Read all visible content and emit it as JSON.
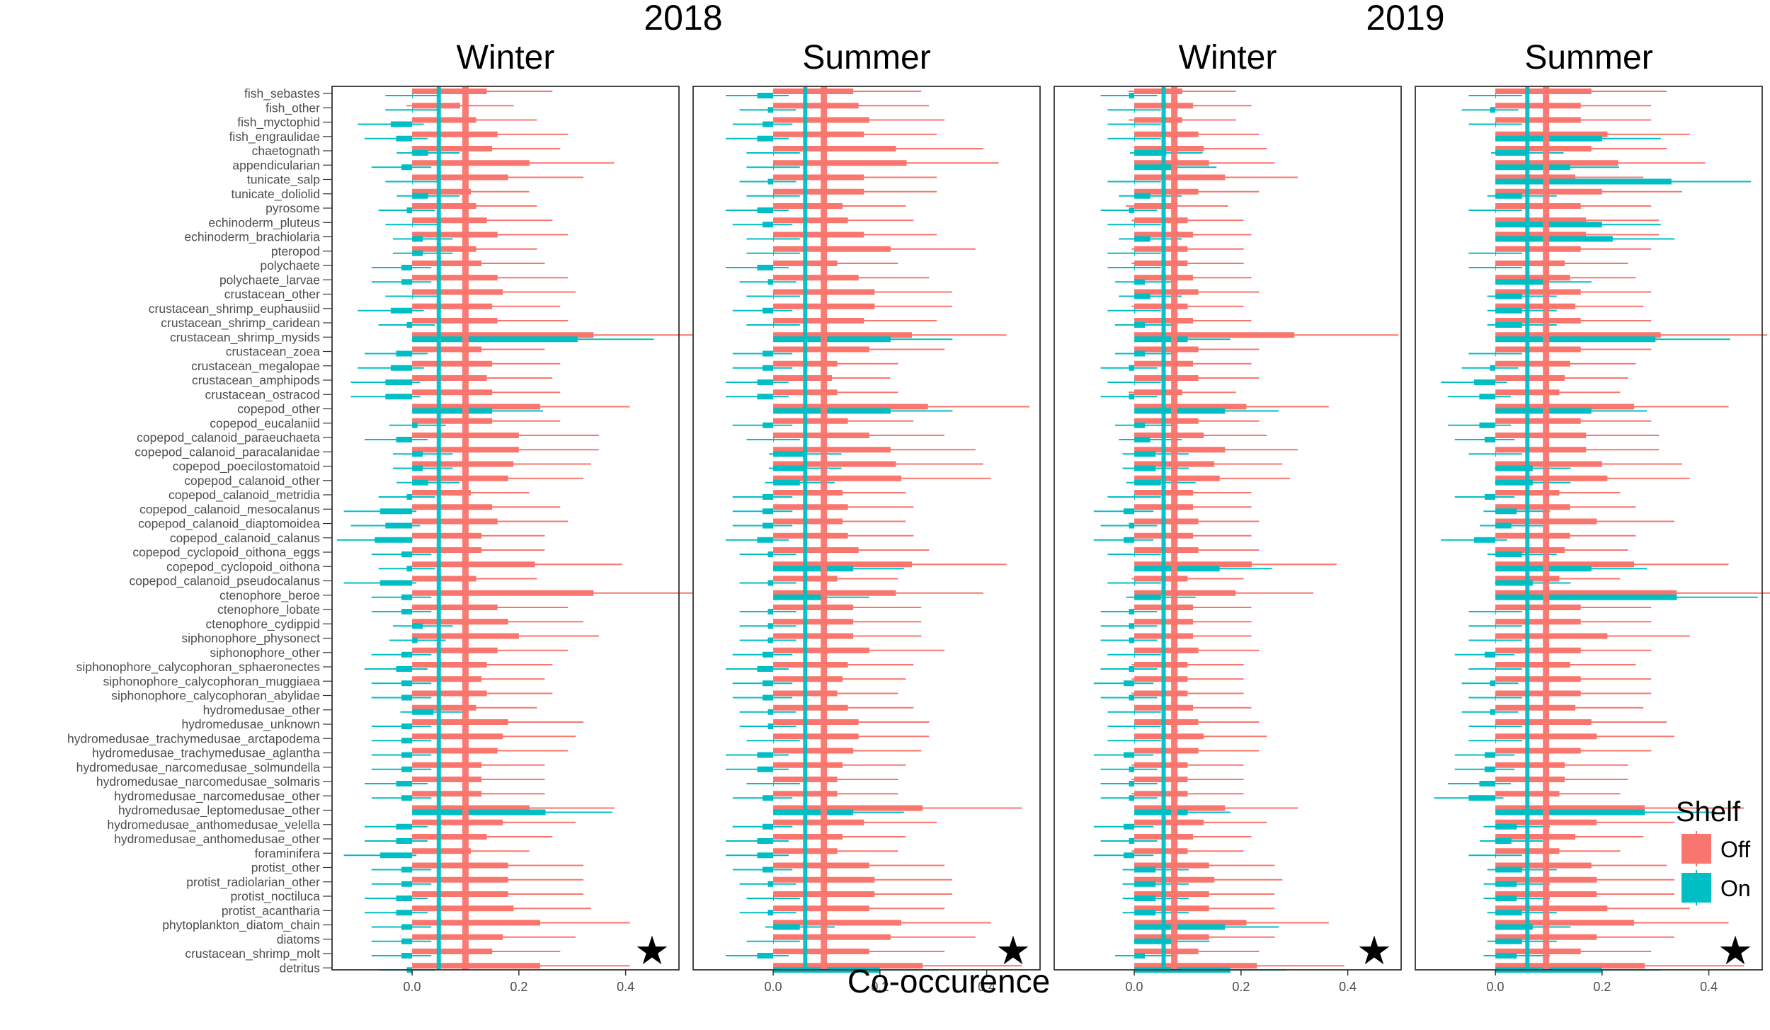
{
  "chart_data": {
    "type": "bar",
    "xlabel": "Co-occurence",
    "xlim": [
      -0.15,
      0.5
    ],
    "xticks": [
      0.0,
      0.2,
      0.4
    ],
    "xtick_labels": [
      "0.0",
      "0.2",
      "0.4"
    ],
    "years": [
      "2018",
      "2019"
    ],
    "legend": {
      "title": "Shelf",
      "position": "bottom-right",
      "entries": [
        {
          "name": "Off",
          "color": "#F8766D"
        },
        {
          "name": "On",
          "color": "#00BFC4"
        }
      ]
    },
    "categories": [
      "fish_sebastes",
      "fish_other",
      "fish_myctophid",
      "fish_engraulidae",
      "chaetognath",
      "appendicularian",
      "tunicate_salp",
      "tunicate_doliolid",
      "pyrosome",
      "echinoderm_pluteus",
      "echinoderm_brachiolaria",
      "pteropod",
      "polychaete",
      "polychaete_larvae",
      "crustacean_other",
      "crustacean_shrimp_euphausiid",
      "crustacean_shrimp_caridean",
      "crustacean_shrimp_mysids",
      "crustacean_zoea",
      "crustacean_megalopae",
      "crustacean_amphipods",
      "crustacean_ostracod",
      "copepod_other",
      "copepod_eucalaniid",
      "copepod_calanoid_paraeuchaeta",
      "copepod_calanoid_paracalanidae",
      "copepod_poecilostomatoid",
      "copepod_calanoid_other",
      "copepod_calanoid_metridia",
      "copepod_calanoid_mesocalanus",
      "copepod_calanoid_diaptomoidea",
      "copepod_calanoid_calanus",
      "copepod_cyclopoid_oithona_eggs",
      "copepod_cyclopoid_oithona",
      "copepod_calanoid_pseudocalanus",
      "ctenophore_beroe",
      "ctenophore_lobate",
      "ctenophore_cydippid",
      "siphonophore_physonect",
      "siphonophore_other",
      "siphonophore_calycophoran_sphaeronectes",
      "siphonophore_calycophoran_muggiaea",
      "siphonophore_calycophoran_abylidae",
      "hydromedusae_other",
      "hydromedusae_unknown",
      "hydromedusae_trachymedusae_arctapodema",
      "hydromedusae_trachymedusae_aglantha",
      "hydromedusae_narcomedusae_solmundella",
      "hydromedusae_narcomedusae_solmaris",
      "hydromedusae_narcomedusae_other",
      "hydromedusae_leptomedusae_other",
      "hydromedusae_anthomedusae_velella",
      "hydromedusae_anthomedusae_other",
      "foraminifera",
      "protist_other",
      "protist_radiolarian_other",
      "protist_noctiluca",
      "protist_acantharia",
      "phytoplankton_diatom_chain",
      "diatoms",
      "crustacean_shrimp_molt",
      "detritus"
    ],
    "panels": [
      {
        "year": "2018",
        "season": "Winter",
        "mean_off": 0.1,
        "mean_on": 0.05,
        "star": "★",
        "off": [
          0.14,
          0.09,
          0.12,
          0.16,
          0.15,
          0.22,
          0.18,
          0.11,
          0.12,
          0.14,
          0.16,
          0.12,
          0.13,
          0.16,
          0.17,
          0.15,
          0.16,
          0.34,
          0.13,
          0.15,
          0.14,
          0.15,
          0.24,
          0.15,
          0.2,
          0.2,
          0.19,
          0.18,
          0.11,
          0.15,
          0.16,
          0.13,
          0.13,
          0.23,
          0.12,
          0.34,
          0.16,
          0.18,
          0.2,
          0.16,
          0.14,
          0.13,
          0.14,
          0.12,
          0.18,
          0.17,
          0.16,
          0.13,
          0.13,
          0.13,
          0.22,
          0.17,
          0.14,
          0.11,
          0.18,
          0.18,
          0.18,
          0.19,
          0.24,
          0.17,
          0.15,
          0.24
        ],
        "on": [
          0.0,
          0.0,
          -0.04,
          -0.03,
          0.03,
          -0.02,
          0.0,
          0.03,
          -0.01,
          0.0,
          0.02,
          0.02,
          -0.02,
          -0.02,
          0.0,
          -0.04,
          -0.01,
          0.31,
          -0.03,
          -0.04,
          -0.05,
          -0.05,
          0.15,
          0.01,
          -0.03,
          0.02,
          0.02,
          0.03,
          -0.01,
          -0.06,
          -0.05,
          -0.07,
          -0.02,
          -0.01,
          -0.06,
          -0.02,
          -0.02,
          0.02,
          0.01,
          -0.02,
          -0.03,
          -0.02,
          -0.02,
          0.04,
          -0.02,
          -0.02,
          -0.02,
          -0.02,
          -0.03,
          -0.02,
          0.25,
          -0.03,
          -0.03,
          -0.06,
          -0.02,
          -0.02,
          -0.03,
          -0.03,
          -0.02,
          -0.02,
          -0.02,
          -0.01
        ]
      },
      {
        "year": "2018",
        "season": "Summer",
        "mean_off": 0.095,
        "mean_on": 0.06,
        "star": "★",
        "off": [
          0.15,
          0.16,
          0.18,
          0.17,
          0.23,
          0.25,
          0.17,
          0.17,
          0.13,
          0.14,
          0.17,
          0.22,
          0.12,
          0.16,
          0.19,
          0.19,
          0.17,
          0.26,
          0.18,
          0.12,
          0.11,
          0.12,
          0.29,
          0.14,
          0.18,
          0.22,
          0.23,
          0.24,
          0.13,
          0.14,
          0.13,
          0.14,
          0.16,
          0.26,
          0.12,
          0.23,
          0.15,
          0.15,
          0.15,
          0.18,
          0.14,
          0.13,
          0.12,
          0.14,
          0.16,
          0.16,
          0.15,
          0.13,
          0.12,
          0.12,
          0.28,
          0.17,
          0.13,
          0.12,
          0.18,
          0.19,
          0.19,
          0.18,
          0.24,
          0.22,
          0.18,
          0.28
        ],
        "on": [
          -0.03,
          -0.01,
          -0.02,
          -0.03,
          0.0,
          0.0,
          -0.01,
          0.0,
          -0.03,
          -0.02,
          0.0,
          0.0,
          -0.03,
          -0.01,
          0.0,
          -0.02,
          0.0,
          0.22,
          -0.02,
          -0.02,
          -0.03,
          -0.03,
          0.22,
          -0.02,
          0.0,
          0.06,
          0.06,
          0.05,
          -0.02,
          -0.02,
          -0.02,
          -0.03,
          -0.01,
          0.15,
          -0.01,
          0.1,
          -0.01,
          -0.01,
          -0.01,
          -0.02,
          -0.03,
          -0.02,
          -0.02,
          -0.01,
          -0.01,
          0.0,
          -0.03,
          -0.03,
          0.0,
          -0.02,
          0.15,
          -0.02,
          -0.03,
          -0.03,
          -0.02,
          -0.01,
          0.0,
          -0.01,
          0.05,
          0.0,
          -0.03,
          0.2
        ]
      },
      {
        "year": "2019",
        "season": "Winter",
        "mean_off": 0.075,
        "mean_on": 0.055,
        "star": "★",
        "off": [
          0.09,
          0.11,
          0.09,
          0.12,
          0.13,
          0.14,
          0.17,
          0.12,
          0.08,
          0.1,
          0.11,
          0.1,
          0.1,
          0.11,
          0.12,
          0.1,
          0.11,
          0.3,
          0.12,
          0.11,
          0.12,
          0.09,
          0.21,
          0.12,
          0.13,
          0.17,
          0.15,
          0.16,
          0.11,
          0.11,
          0.12,
          0.11,
          0.12,
          0.22,
          0.1,
          0.19,
          0.11,
          0.11,
          0.11,
          0.12,
          0.1,
          0.1,
          0.1,
          0.11,
          0.12,
          0.13,
          0.12,
          0.1,
          0.1,
          0.1,
          0.17,
          0.13,
          0.11,
          0.1,
          0.14,
          0.15,
          0.14,
          0.14,
          0.21,
          0.14,
          0.12,
          0.23
        ],
        "on": [
          -0.01,
          0.0,
          0.0,
          0.0,
          0.06,
          0.08,
          0.0,
          0.03,
          -0.01,
          0.0,
          0.03,
          0.0,
          0.0,
          0.02,
          0.03,
          0.0,
          0.02,
          0.1,
          0.02,
          -0.01,
          0.0,
          -0.01,
          0.17,
          0.02,
          0.03,
          0.04,
          0.04,
          0.05,
          0.0,
          -0.02,
          -0.01,
          -0.02,
          0.0,
          0.16,
          0.0,
          0.05,
          -0.01,
          -0.01,
          -0.01,
          0.0,
          -0.01,
          -0.02,
          -0.01,
          0.0,
          0.0,
          0.0,
          -0.02,
          -0.01,
          -0.01,
          -0.01,
          0.1,
          -0.02,
          -0.01,
          -0.02,
          0.04,
          0.04,
          0.04,
          0.04,
          0.17,
          0.07,
          0.02,
          0.18
        ]
      },
      {
        "year": "2019",
        "season": "Summer",
        "mean_off": 0.095,
        "mean_on": 0.06,
        "star": "★",
        "off": [
          0.18,
          0.16,
          0.16,
          0.21,
          0.18,
          0.23,
          0.15,
          0.2,
          0.16,
          0.17,
          0.17,
          0.16,
          0.13,
          0.14,
          0.16,
          0.15,
          0.16,
          0.31,
          0.16,
          0.14,
          0.13,
          0.12,
          0.26,
          0.16,
          0.17,
          0.17,
          0.2,
          0.21,
          0.12,
          0.14,
          0.19,
          0.14,
          0.13,
          0.26,
          0.12,
          0.34,
          0.16,
          0.16,
          0.21,
          0.16,
          0.14,
          0.16,
          0.16,
          0.15,
          0.18,
          0.19,
          0.16,
          0.13,
          0.13,
          0.12,
          0.28,
          0.19,
          0.15,
          0.12,
          0.18,
          0.19,
          0.19,
          0.21,
          0.26,
          0.19,
          0.16,
          0.28
        ],
        "on": [
          0.0,
          -0.01,
          0.0,
          0.2,
          0.06,
          0.14,
          0.33,
          0.05,
          0.0,
          0.2,
          0.22,
          0.0,
          0.0,
          0.1,
          0.05,
          0.05,
          0.05,
          0.3,
          0.0,
          -0.01,
          -0.04,
          -0.03,
          0.18,
          -0.03,
          -0.02,
          0.0,
          0.07,
          0.07,
          -0.02,
          0.04,
          0.03,
          -0.04,
          0.05,
          0.18,
          0.07,
          0.34,
          0.0,
          0.0,
          0.0,
          -0.02,
          0.0,
          -0.01,
          0.0,
          -0.01,
          0.0,
          0.0,
          -0.02,
          -0.02,
          -0.03,
          -0.05,
          0.28,
          0.04,
          0.03,
          0.0,
          0.05,
          0.04,
          0.04,
          0.05,
          0.07,
          0.05,
          0.04,
          0.2
        ]
      }
    ]
  }
}
